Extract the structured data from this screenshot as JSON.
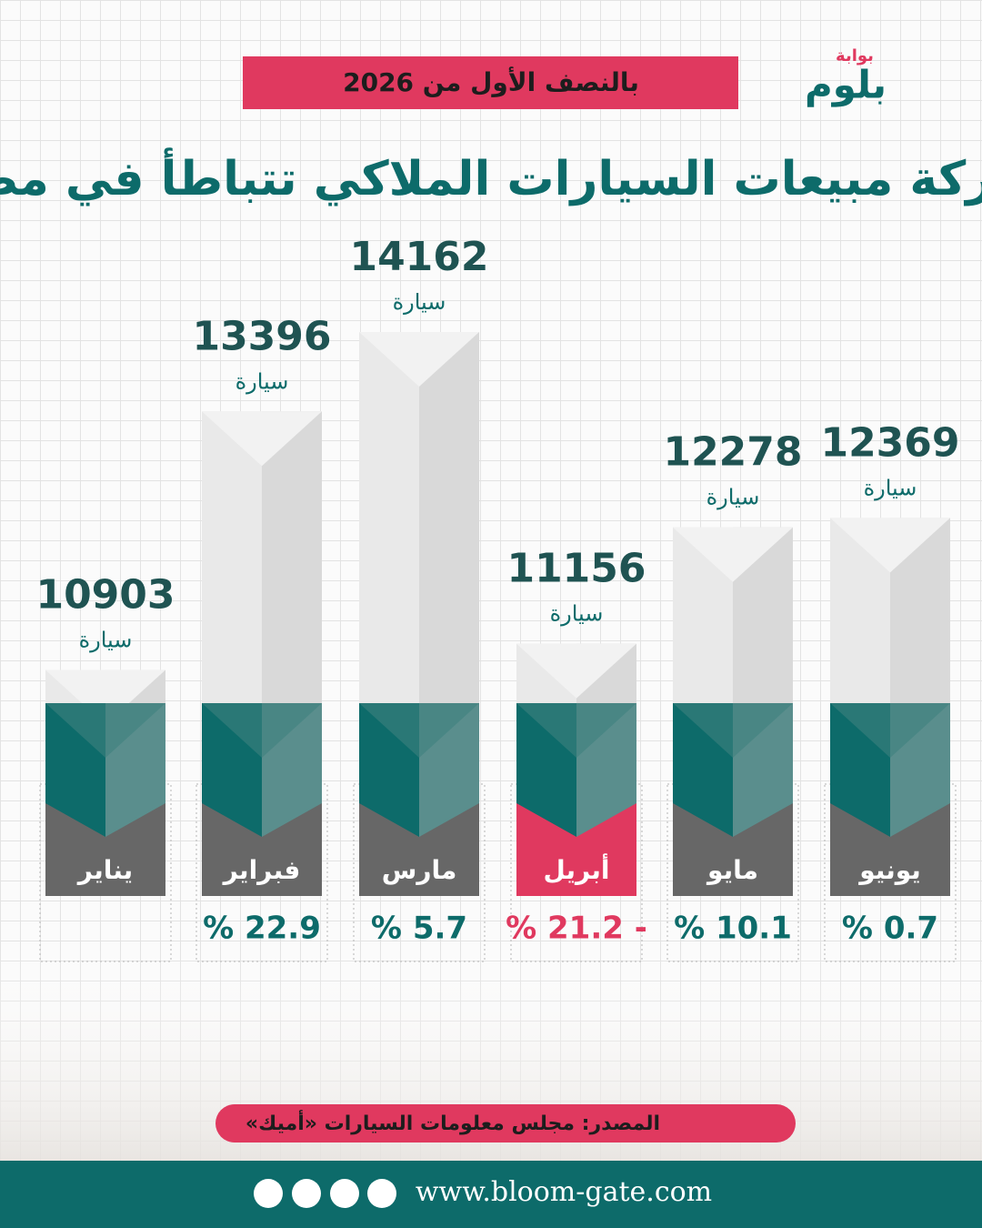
{
  "logo": {
    "top": "بوابة",
    "name": "بلوم"
  },
  "chart_data": {
    "type": "bar",
    "subtitle": "بالنصف الأول من 2026",
    "title": "حركة مبيعات السيارات الملاكي تتباطأ في مصر",
    "categories": [
      "يناير",
      "فبراير",
      "مارس",
      "أبريل",
      "مايو",
      "يونيو"
    ],
    "values": [
      10903,
      13396,
      14162,
      11156,
      12278,
      12369
    ],
    "unit_label": "سيارة",
    "changes": [
      null,
      22.9,
      5.7,
      -21.2,
      10.1,
      0.7
    ],
    "change_labels": [
      null,
      "% 22.9",
      "% 5.7",
      "% 21.2 -",
      "% 10.1",
      "% 0.7"
    ],
    "color": "#0d6b6a",
    "label_color": "#676767",
    "negative_color": "#e0395f"
  },
  "source": "المصدر: مجلس معلومات السيارات «أميك»",
  "website": "www.bloom-gate.com"
}
